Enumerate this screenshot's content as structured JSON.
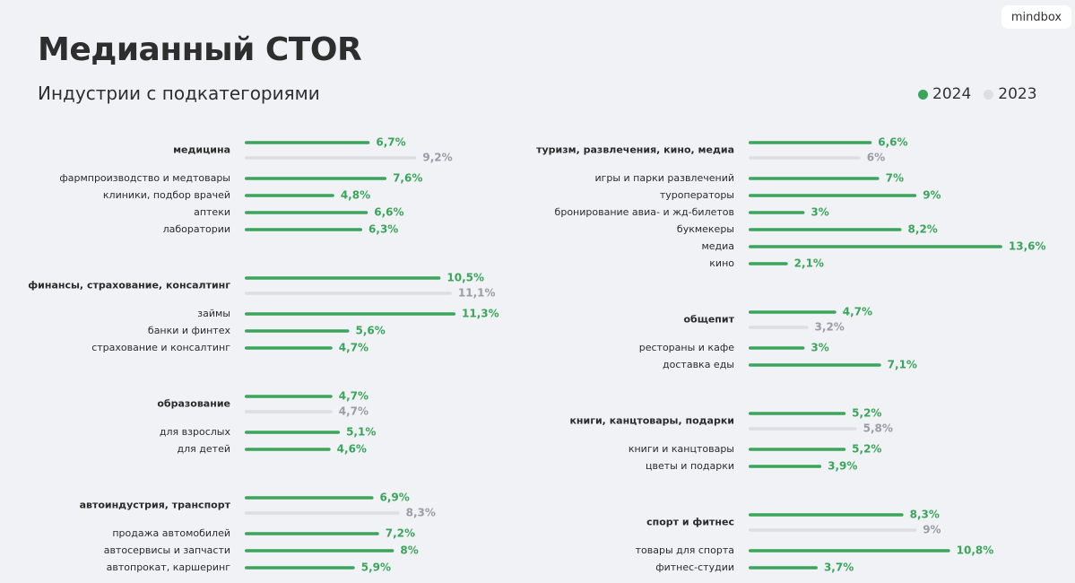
{
  "header": {
    "logo": "mindbox",
    "title": "Медианный CTOR",
    "subtitle": "Индустрии с подкатегориями"
  },
  "legend": [
    {
      "label": "2024",
      "color": "#3aa55b"
    },
    {
      "label": "2023",
      "color": "#dcdee3"
    }
  ],
  "colors": {
    "bar_2024": "#3aa55b",
    "bar_2023": "#dcdee3",
    "value_2024": "#3aa55b",
    "value_2023": "#9a9ca6",
    "label": "#2b2b2b"
  },
  "chart_data": {
    "type": "bar",
    "orientation": "horizontal",
    "unit": "%",
    "xlim": [
      0,
      14
    ],
    "grid": false,
    "legend_position": "top-right",
    "series_names": [
      "2024",
      "2023"
    ],
    "groups": [
      {
        "name": "медицина",
        "value_2024": 6.7,
        "label_2024": "6,7%",
        "value_2023": 9.2,
        "label_2023": "9,2%",
        "subcategories": [
          {
            "name": "фармпроизводство и медтовары",
            "value": 7.6,
            "label": "7,6%"
          },
          {
            "name": "клиники, подбор врачей",
            "value": 4.8,
            "label": "4,8%"
          },
          {
            "name": "аптеки",
            "value": 6.6,
            "label": "6,6%"
          },
          {
            "name": "лаборатории",
            "value": 6.3,
            "label": "6,3%"
          }
        ]
      },
      {
        "name": "финансы, страхование, консалтинг",
        "value_2024": 10.5,
        "label_2024": "10,5%",
        "value_2023": 11.1,
        "label_2023": "11,1%",
        "subcategories": [
          {
            "name": "займы",
            "value": 11.3,
            "label": "11,3%"
          },
          {
            "name": "банки и финтех",
            "value": 5.6,
            "label": "5,6%"
          },
          {
            "name": "страхование и консалтинг",
            "value": 4.7,
            "label": "4,7%"
          }
        ]
      },
      {
        "name": "образование",
        "value_2024": 4.7,
        "label_2024": "4,7%",
        "value_2023": 4.7,
        "label_2023": "4,7%",
        "subcategories": [
          {
            "name": "для взрослых",
            "value": 5.1,
            "label": "5,1%"
          },
          {
            "name": "для детей",
            "value": 4.6,
            "label": "4,6%"
          }
        ]
      },
      {
        "name": "автоиндустрия, транспорт",
        "value_2024": 6.9,
        "label_2024": "6,9%",
        "value_2023": 8.3,
        "label_2023": "8,3%",
        "subcategories": [
          {
            "name": "продажа автомобилей",
            "value": 7.2,
            "label": "7,2%"
          },
          {
            "name": "автосервисы и запчасти",
            "value": 8,
            "label": "8%"
          },
          {
            "name": "автопрокат, каршеринг",
            "value": 5.9,
            "label": "5,9%"
          }
        ]
      },
      {
        "name": "туризм, развлечения, кино, медиа",
        "value_2024": 6.6,
        "label_2024": "6,6%",
        "value_2023": 6,
        "label_2023": "6%",
        "subcategories": [
          {
            "name": "игры и парки развлечений",
            "value": 7,
            "label": "7%"
          },
          {
            "name": "туроператоры",
            "value": 9,
            "label": "9%"
          },
          {
            "name": "бронирование авиа- и жд-билетов",
            "value": 3,
            "label": "3%"
          },
          {
            "name": "букмекеры",
            "value": 8.2,
            "label": "8,2%"
          },
          {
            "name": "медиа",
            "value": 13.6,
            "label": "13,6%"
          },
          {
            "name": "кино",
            "value": 2.1,
            "label": "2,1%"
          }
        ]
      },
      {
        "name": "общепит",
        "value_2024": 4.7,
        "label_2024": "4,7%",
        "value_2023": 3.2,
        "label_2023": "3,2%",
        "subcategories": [
          {
            "name": "рестораны и кафе",
            "value": 3,
            "label": "3%"
          },
          {
            "name": "доставка еды",
            "value": 7.1,
            "label": "7,1%"
          }
        ]
      },
      {
        "name": "книги, канцтовары, подарки",
        "value_2024": 5.2,
        "label_2024": "5,2%",
        "value_2023": 5.8,
        "label_2023": "5,8%",
        "subcategories": [
          {
            "name": "книги и канцтовары",
            "value": 5.2,
            "label": "5,2%"
          },
          {
            "name": "цветы и подарки",
            "value": 3.9,
            "label": "3,9%"
          }
        ]
      },
      {
        "name": "спорт и фитнес",
        "value_2024": 8.3,
        "label_2024": "8,3%",
        "value_2023": 9,
        "label_2023": "9%",
        "subcategories": [
          {
            "name": "товары для спорта",
            "value": 10.8,
            "label": "10,8%"
          },
          {
            "name": "фитнес-студии",
            "value": 3.7,
            "label": "3,7%"
          }
        ]
      }
    ]
  }
}
